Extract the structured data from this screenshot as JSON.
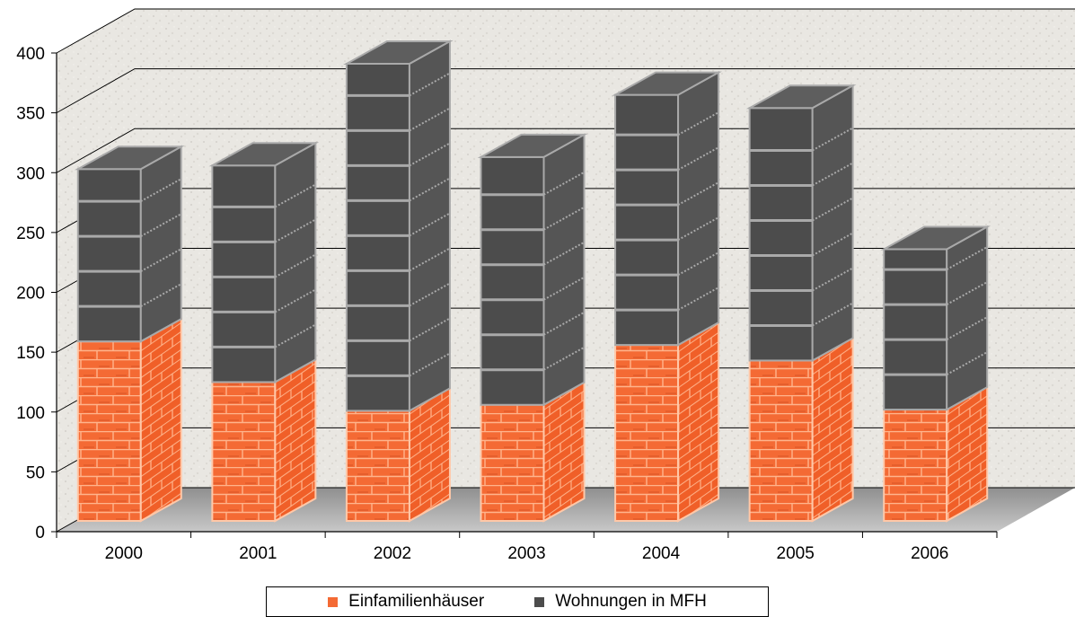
{
  "chart_data": {
    "type": "bar",
    "stacked": true,
    "categories": [
      "2000",
      "2001",
      "2002",
      "2003",
      "2004",
      "2005",
      "2006"
    ],
    "series": [
      {
        "name": "Einfamilienhäuser",
        "values": [
          150,
          116,
          92,
          97,
          147,
          134,
          93
        ],
        "color": "#f46a34"
      },
      {
        "name": "Wohnungen in MFH",
        "values": [
          144,
          181,
          290,
          207,
          209,
          211,
          134
        ],
        "color": "#4c4c4c"
      }
    ],
    "ylim": [
      0,
      400
    ],
    "yticks": [
      0,
      50,
      100,
      150,
      200,
      250,
      300,
      350,
      400
    ],
    "grid": true,
    "legend_position": "bottom",
    "xlabel": "",
    "ylabel": "",
    "title": ""
  }
}
